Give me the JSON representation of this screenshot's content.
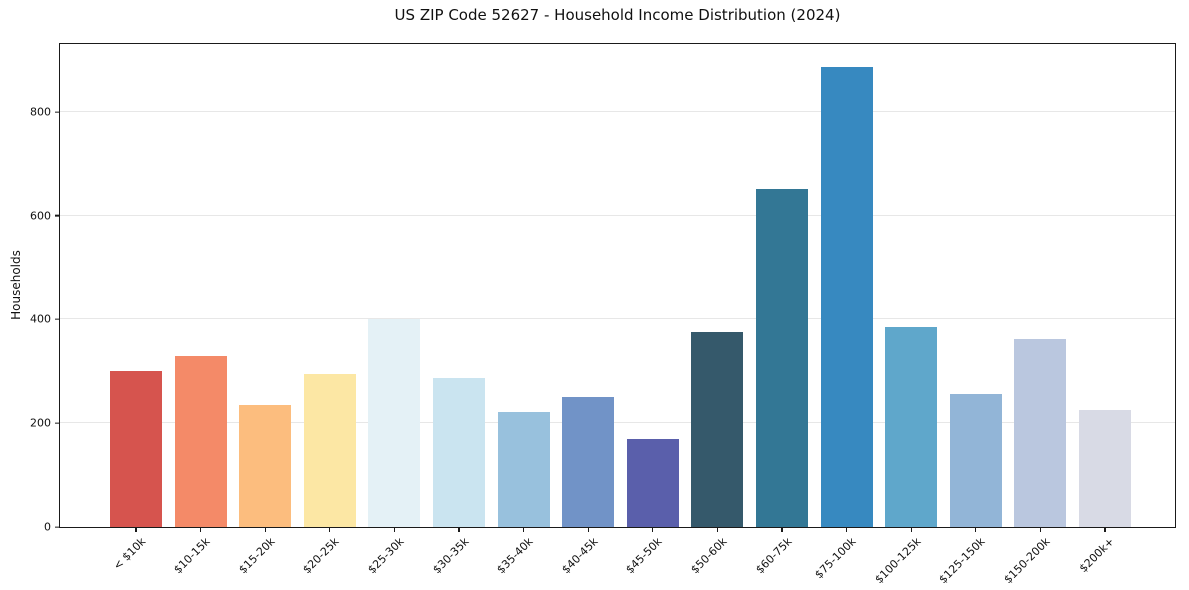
{
  "chart_data": {
    "type": "bar",
    "title": "US ZIP Code 52627 - Household Income Distribution (2024)",
    "xlabel": "",
    "ylabel": "Households",
    "categories": [
      "< $10k",
      "$10-15k",
      "$15-20k",
      "$20-25k",
      "$25-30k",
      "$30-35k",
      "$35-40k",
      "$40-45k",
      "$45-50k",
      "$50-60k",
      "$60-75k",
      "$75-100k",
      "$100-125k",
      "$125-150k",
      "$150-200k",
      "$200k+"
    ],
    "values": [
      300,
      330,
      236,
      295,
      400,
      288,
      222,
      250,
      170,
      375,
      652,
      886,
      386,
      257,
      363,
      226
    ],
    "bar_colors": [
      "#d6544e",
      "#f48a68",
      "#fcbd7e",
      "#fce7a4",
      "#e4f1f6",
      "#cae4f0",
      "#98c1dd",
      "#7193c7",
      "#5a5fab",
      "#35596b",
      "#337795",
      "#3789c0",
      "#5fa7cb",
      "#92b5d7",
      "#bac7df",
      "#d8dae5"
    ],
    "yticks": [
      0,
      200,
      400,
      600,
      800
    ],
    "ylim": [
      0,
      935
    ],
    "grid": "horizontal",
    "grid_color": "#e7e7e7",
    "background": "#ffffff",
    "axis_color": "#1a1a1a",
    "x_tick_rotation": 45,
    "legend": "none"
  }
}
